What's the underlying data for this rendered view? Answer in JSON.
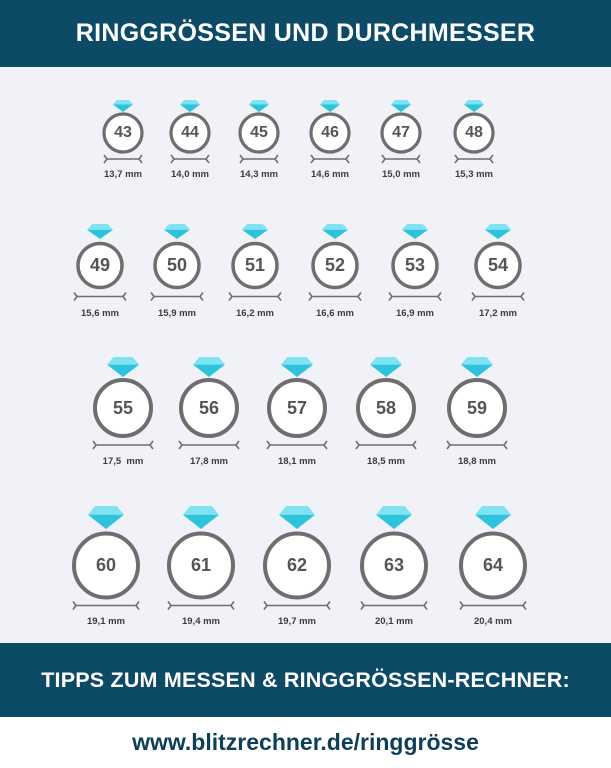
{
  "header": {
    "title": "RINGGRÖSSEN UND DURCHMESSER"
  },
  "colors": {
    "banner": "#0d4a66",
    "panel": "#f1f2f8",
    "ring_stroke": "#6e6e6e",
    "ring_fill": "#ffffff",
    "gem_top": "#7fe3f2",
    "gem_bottom": "#2ec3dd",
    "measure_line": "#6e6e6e",
    "url_text": "#0d3f57"
  },
  "gem_icon": "diamond-icon",
  "rows": [
    {
      "rings": [
        {
          "size": "43",
          "diameter": "13,7 mm"
        },
        {
          "size": "44",
          "diameter": "14,0 mm"
        },
        {
          "size": "45",
          "diameter": "14,3 mm"
        },
        {
          "size": "46",
          "diameter": "14,6 mm"
        },
        {
          "size": "47",
          "diameter": "15,0 mm"
        },
        {
          "size": "48",
          "diameter": "15,3 mm"
        }
      ]
    },
    {
      "rings": [
        {
          "size": "49",
          "diameter": "15,6 mm"
        },
        {
          "size": "50",
          "diameter": "15,9 mm"
        },
        {
          "size": "51",
          "diameter": "16,2 mm"
        },
        {
          "size": "52",
          "diameter": "16,6 mm"
        },
        {
          "size": "53",
          "diameter": "16,9 mm"
        },
        {
          "size": "54",
          "diameter": "17,2 mm"
        }
      ]
    },
    {
      "rings": [
        {
          "size": "55",
          "diameter": "17,5  mm"
        },
        {
          "size": "56",
          "diameter": "17,8 mm"
        },
        {
          "size": "57",
          "diameter": "18,1 mm"
        },
        {
          "size": "58",
          "diameter": "18,5 mm"
        },
        {
          "size": "59",
          "diameter": "18,8 mm"
        }
      ]
    },
    {
      "rings": [
        {
          "size": "60",
          "diameter": "19,1 mm"
        },
        {
          "size": "61",
          "diameter": "19,4 mm"
        },
        {
          "size": "62",
          "diameter": "19,7 mm"
        },
        {
          "size": "63",
          "diameter": "20,1 mm"
        },
        {
          "size": "64",
          "diameter": "20,4 mm"
        }
      ]
    }
  ],
  "footer": {
    "tips_title": "TIPPS ZUM MESSEN & RINGGRÖSSEN-RECHNER:",
    "url": "www.blitzrechner.de/ringgrösse"
  }
}
